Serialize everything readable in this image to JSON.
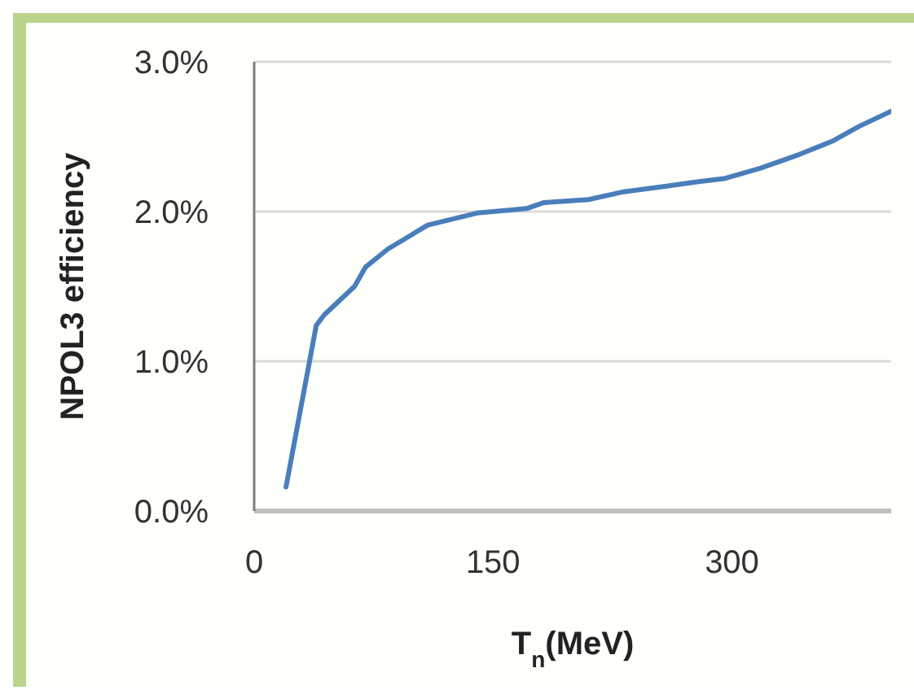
{
  "chart_data": {
    "type": "line",
    "xlabel": "T$_{n}$(MeV)",
    "ylabel": "NPOL3 efficiency",
    "xlim": [
      0,
      400
    ],
    "xticks": [
      0,
      150,
      300
    ],
    "ylim": [
      0,
      3
    ],
    "yticks": [
      {
        "value": 0,
        "label": "0.0%"
      },
      {
        "value": 1,
        "label": "1.0%"
      },
      {
        "value": 2,
        "label": "2.0%"
      },
      {
        "value": 3,
        "label": "3.0%"
      }
    ],
    "grid": "y",
    "series": [
      {
        "color": "#4a7ebb",
        "x": [
          20,
          39,
          44,
          63,
          70,
          84,
          109,
          140,
          171,
          182,
          210,
          231,
          259,
          279,
          295,
          318,
          342,
          363,
          380,
          400
        ],
        "values": [
          0.16,
          1.24,
          1.31,
          1.5,
          1.63,
          1.75,
          1.91,
          1.99,
          2.02,
          2.06,
          2.08,
          2.13,
          2.17,
          2.2,
          2.22,
          2.29,
          2.38,
          2.47,
          2.57,
          2.67
        ]
      }
    ]
  }
}
